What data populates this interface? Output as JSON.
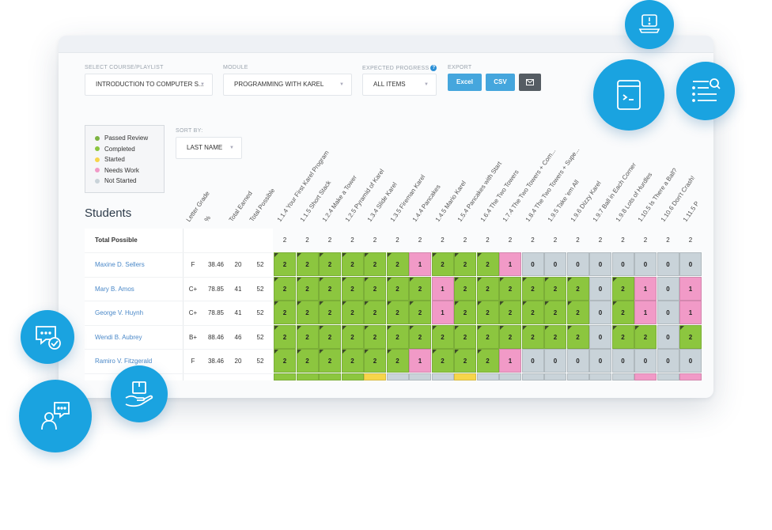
{
  "filters": {
    "course_label": "SELECT COURSE/PLAYLIST",
    "course_value": "INTRODUCTION TO COMPUTER S...",
    "module_label": "MODULE",
    "module_value": "PROGRAMMING WITH KAREL",
    "progress_label": "EXPECTED PROGRESS",
    "progress_help": "?",
    "progress_value": "ALL ITEMS",
    "export_label": "EXPORT",
    "excel": "Excel",
    "csv": "CSV",
    "email_icon": "envelope-icon",
    "sort_label": "SORT BY:",
    "sort_value": "LAST NAME"
  },
  "legend": [
    {
      "label": "Passed Review",
      "color": "#7cb342"
    },
    {
      "label": "Completed",
      "color": "#8cc63f"
    },
    {
      "label": "Started",
      "color": "#f7d54a"
    },
    {
      "label": "Needs Work",
      "color": "#f19ac7"
    },
    {
      "label": "Not Started",
      "color": "#c9d3d9"
    }
  ],
  "students_title": "Students",
  "columns": {
    "stats": [
      "Letter Grade",
      "%",
      "Total Earned",
      "Total Possible"
    ],
    "assignments": [
      "1.1.4 Your First Karel Program",
      "1.1.5 Short Stack",
      "1.2.4 Make a Tower",
      "1.2.5 Pyramid of Karel",
      "1.3.4 Slide Karel",
      "1.3.5 Fireman Karel",
      "1.4.4 Pancakes",
      "1.4.5 Mario Karel",
      "1.5.4 Pancakes with Start",
      "1.6.4 The Two Towers",
      "1.7.4 The Two Towers + Com...",
      "1.8.4 The Two Towers + Supe...",
      "1.9.5 Take 'em All",
      "1.9.6 Dizzy Karel",
      "1.9.7 Ball in Each Corner",
      "1.9.8 Lots of Hurdles",
      "1.10.5 Is There a Ball?",
      "1.10.6 Don't Crash!",
      "1.11.5 P"
    ]
  },
  "total_possible": {
    "label": "Total Possible",
    "values": [
      "2",
      "2",
      "2",
      "2",
      "2",
      "2",
      "2",
      "2",
      "2",
      "2",
      "2",
      "2",
      "2",
      "2",
      "2",
      "2",
      "2",
      "2",
      "2"
    ]
  },
  "students": [
    {
      "name": "Maxine D. Sellers",
      "grade": "F",
      "pct": "38.46",
      "earned": "20",
      "possible": "52",
      "scores": [
        "2",
        "2",
        "2",
        "2",
        "2",
        "2",
        "1",
        "2",
        "2",
        "2",
        "1",
        "0",
        "0",
        "0",
        "0",
        "0",
        "0",
        "0",
        "0"
      ],
      "status": [
        "g",
        "g",
        "g",
        "g",
        "g",
        "g",
        "p",
        "g",
        "g",
        "g",
        "p",
        "n",
        "n",
        "n",
        "n",
        "n",
        "n",
        "n",
        "n"
      ]
    },
    {
      "name": "Mary B. Amos",
      "grade": "C+",
      "pct": "78.85",
      "earned": "41",
      "possible": "52",
      "scores": [
        "2",
        "2",
        "2",
        "2",
        "2",
        "2",
        "2",
        "1",
        "2",
        "2",
        "2",
        "2",
        "2",
        "2",
        "0",
        "2",
        "1",
        "0",
        "1"
      ],
      "status": [
        "g",
        "g",
        "g",
        "g",
        "g",
        "g",
        "g",
        "p",
        "g",
        "g",
        "g",
        "g",
        "g",
        "g",
        "n",
        "g",
        "p",
        "n",
        "p"
      ]
    },
    {
      "name": "George V. Huynh",
      "grade": "C+",
      "pct": "78.85",
      "earned": "41",
      "possible": "52",
      "scores": [
        "2",
        "2",
        "2",
        "2",
        "2",
        "2",
        "2",
        "1",
        "2",
        "2",
        "2",
        "2",
        "2",
        "2",
        "0",
        "2",
        "1",
        "0",
        "1"
      ],
      "status": [
        "g",
        "g",
        "g",
        "g",
        "g",
        "g",
        "g",
        "p",
        "g",
        "g",
        "g",
        "g",
        "g",
        "g",
        "n",
        "g",
        "p",
        "n",
        "p"
      ]
    },
    {
      "name": "Wendi B. Aubrey",
      "grade": "B+",
      "pct": "88.46",
      "earned": "46",
      "possible": "52",
      "scores": [
        "2",
        "2",
        "2",
        "2",
        "2",
        "2",
        "2",
        "2",
        "2",
        "2",
        "2",
        "2",
        "2",
        "2",
        "0",
        "2",
        "2",
        "0",
        "2"
      ],
      "status": [
        "g",
        "g",
        "g",
        "g",
        "g",
        "g",
        "g",
        "g",
        "g",
        "g",
        "g",
        "g",
        "g",
        "g",
        "n",
        "g",
        "g",
        "n",
        "g"
      ]
    },
    {
      "name": "Ramiro V. Fitzgerald",
      "grade": "F",
      "pct": "38.46",
      "earned": "20",
      "possible": "52",
      "scores": [
        "2",
        "2",
        "2",
        "2",
        "2",
        "2",
        "1",
        "2",
        "2",
        "2",
        "1",
        "0",
        "0",
        "0",
        "0",
        "0",
        "0",
        "0",
        "0"
      ],
      "status": [
        "g",
        "g",
        "g",
        "g",
        "g",
        "g",
        "p",
        "g",
        "g",
        "g",
        "p",
        "n",
        "n",
        "n",
        "n",
        "n",
        "n",
        "n",
        "n"
      ]
    }
  ],
  "partial_row_status": [
    "g",
    "g",
    "g",
    "g",
    "y",
    "n",
    "n",
    "n",
    "y",
    "n",
    "n",
    "n",
    "n",
    "n",
    "n",
    "n",
    "p",
    "n",
    "p"
  ],
  "decor_icons": [
    "laptop-alert-icon",
    "code-window-icon",
    "search-list-icon",
    "chat-check-icon",
    "user-chat-icon",
    "hand-package-icon"
  ]
}
